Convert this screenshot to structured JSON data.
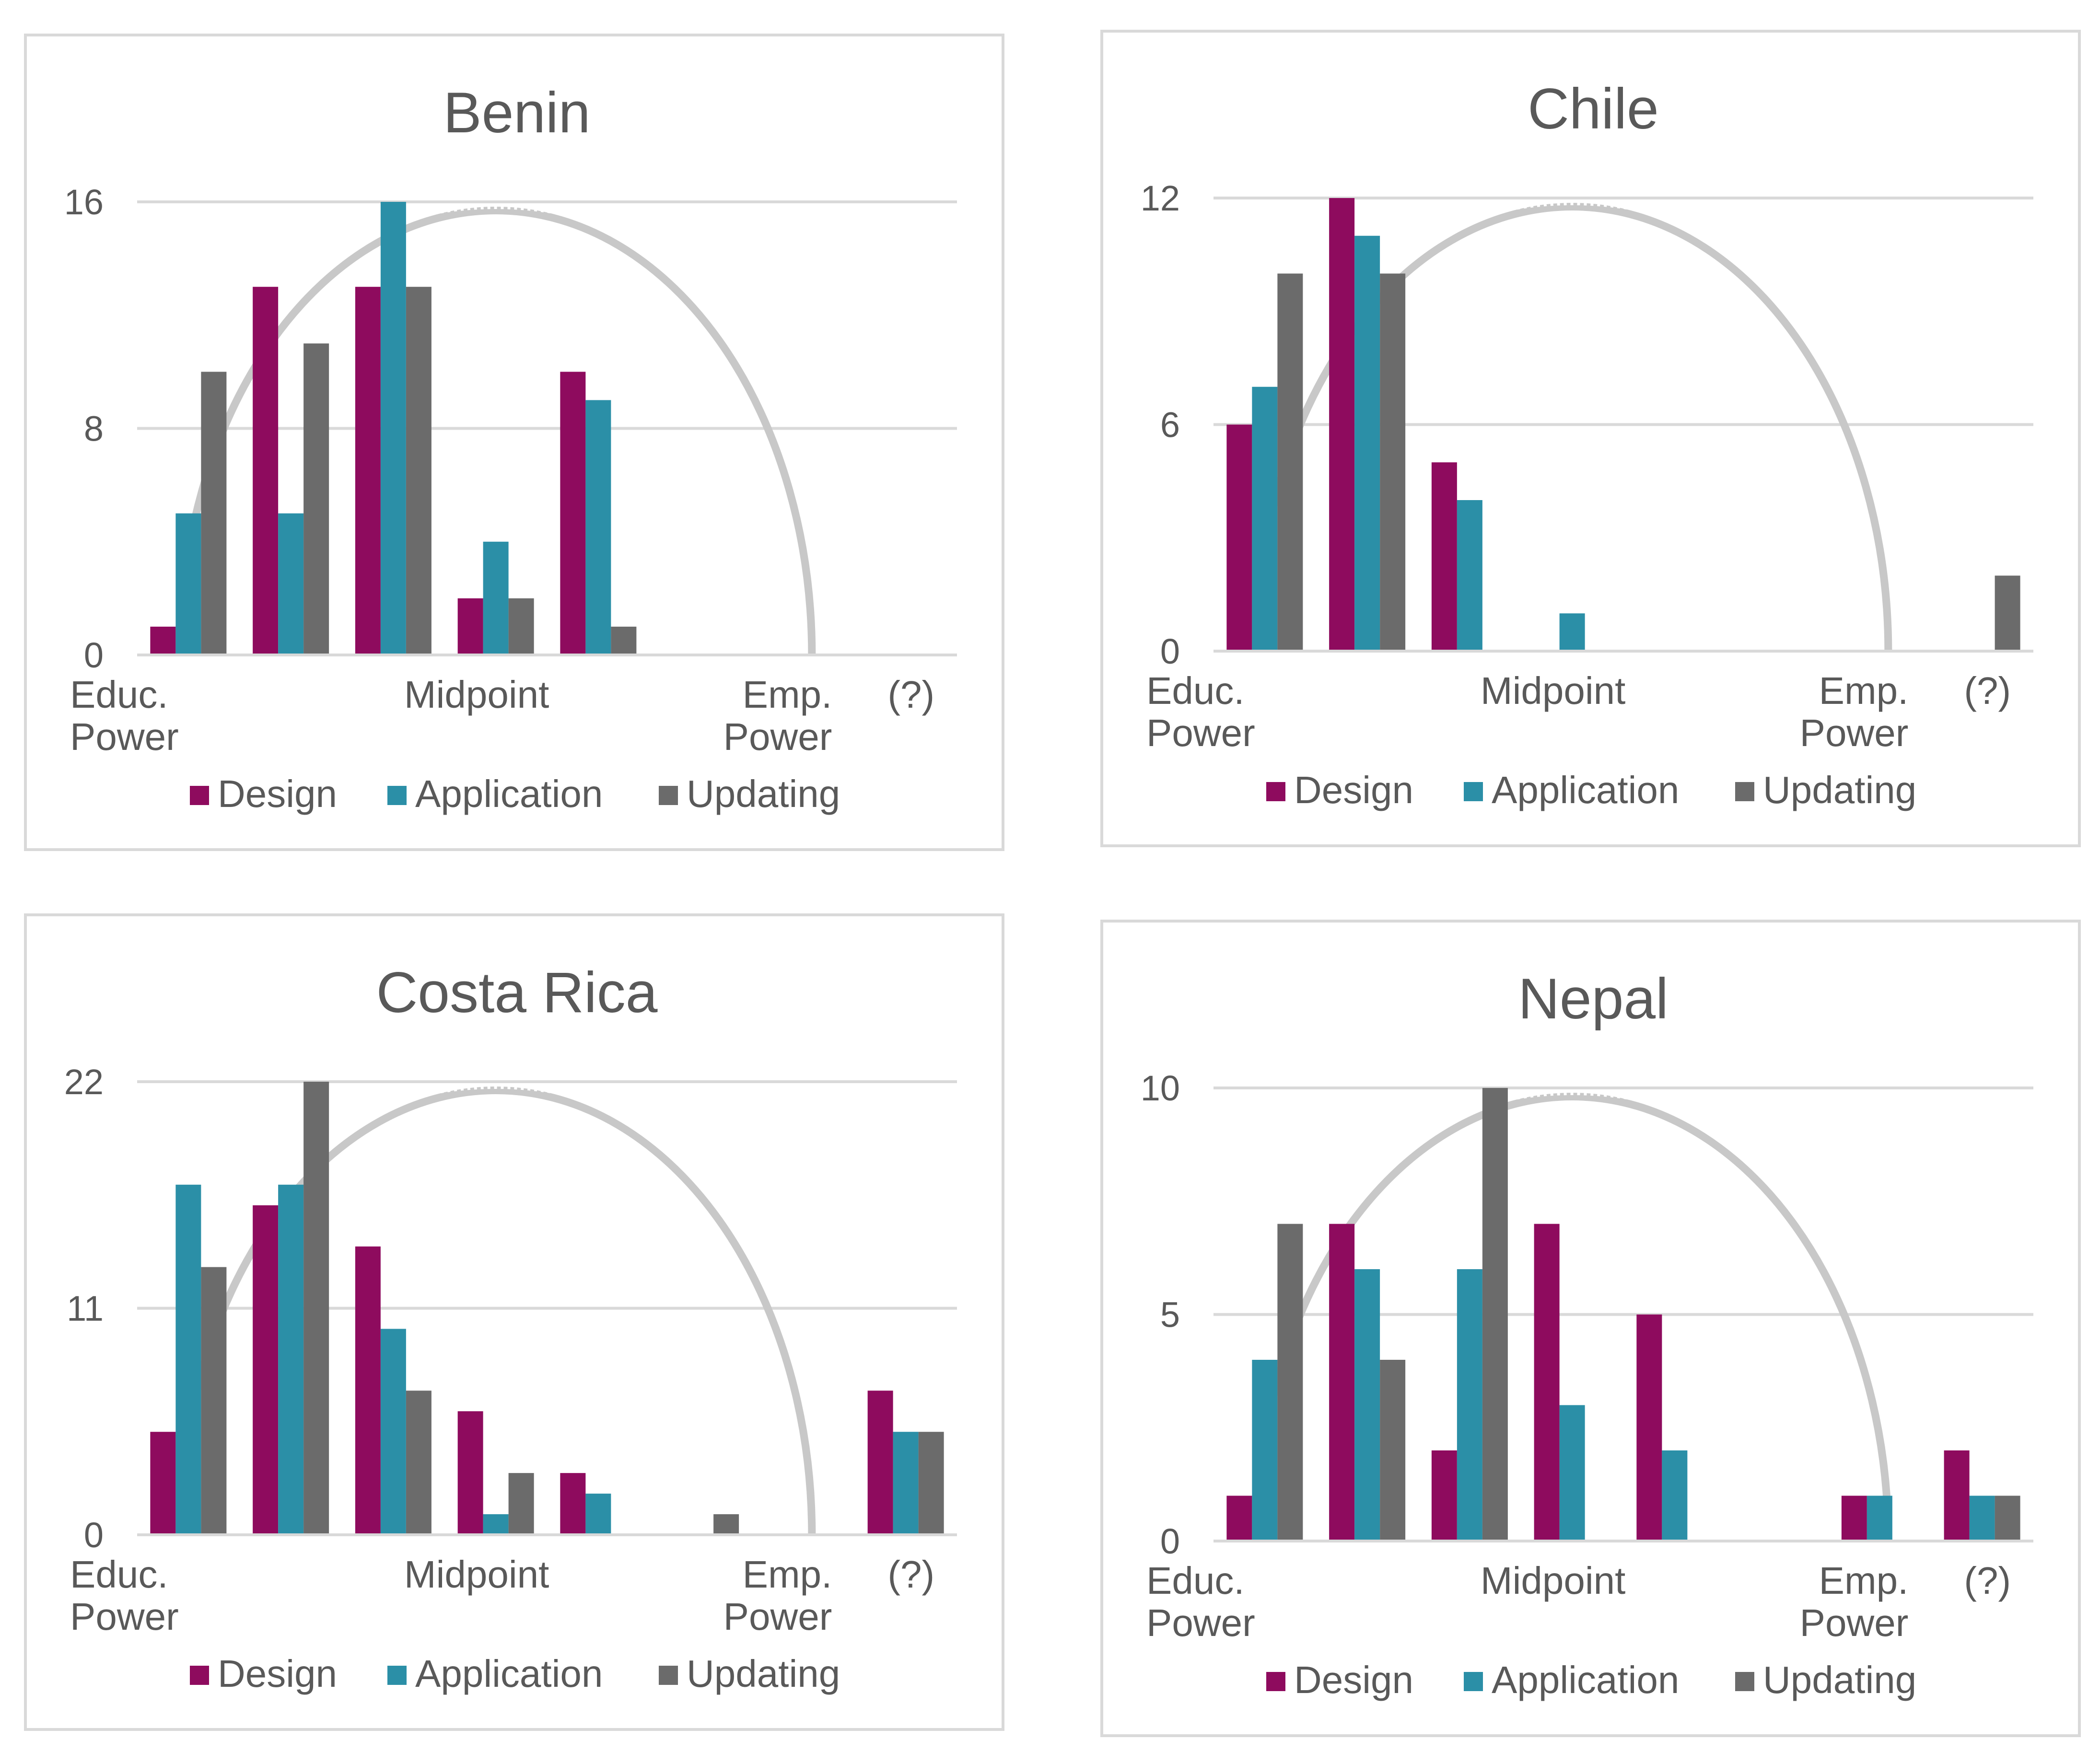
{
  "series_names": [
    "Design",
    "Application",
    "Updating"
  ],
  "colors": {
    "design": "#8e0b5e",
    "application": "#2b8fa7",
    "updating": "#6b6b6b",
    "grid": "#d9d9d9",
    "arc": "#c8c8c8",
    "text": "#595959"
  },
  "chart_data": [
    {
      "type": "bar",
      "title": "Benin",
      "categories": [
        "Educ. Power",
        "",
        "",
        "Midpoint",
        "",
        "",
        "Emp. Power",
        "(?)"
      ],
      "x_labels": [
        {
          "lines": [
            "Educ.",
            "Power"
          ],
          "pos": "cat-1"
        },
        {
          "lines": [
            "Midpoint"
          ],
          "pos": "cat-4"
        },
        {
          "lines": [
            "Emp.",
            "Power"
          ],
          "pos": "cat-7"
        },
        {
          "lines": [
            "(?)"
          ],
          "pos": "cat-8"
        }
      ],
      "ylim": [
        0,
        16
      ],
      "yticks": [
        "0",
        "8",
        "16"
      ],
      "series": [
        {
          "name": "Design",
          "values": [
            1,
            13,
            13,
            2,
            10,
            0,
            0,
            0
          ]
        },
        {
          "name": "Application",
          "values": [
            5,
            5,
            16,
            4,
            9,
            0,
            0,
            0
          ]
        },
        {
          "name": "Updating",
          "values": [
            10,
            11,
            13,
            2,
            1,
            0,
            0,
            0
          ]
        }
      ]
    },
    {
      "type": "bar",
      "title": "Chile",
      "categories": [
        "Educ. Power",
        "",
        "",
        "Midpoint",
        "",
        "",
        "Emp. Power",
        "(?)"
      ],
      "x_labels": [
        {
          "lines": [
            "Educ.",
            "Power"
          ],
          "pos": "cat-1"
        },
        {
          "lines": [
            "Midpoint"
          ],
          "pos": "cat-4"
        },
        {
          "lines": [
            "Emp.",
            "Power"
          ],
          "pos": "cat-7"
        },
        {
          "lines": [
            "(?)"
          ],
          "pos": "cat-8"
        }
      ],
      "ylim": [
        0,
        12
      ],
      "yticks": [
        "0",
        "6",
        "12"
      ],
      "series": [
        {
          "name": "Design",
          "values": [
            6,
            12,
            5,
            0,
            0,
            0,
            0,
            0
          ]
        },
        {
          "name": "Application",
          "values": [
            7,
            11,
            4,
            1,
            0,
            0,
            0,
            0
          ]
        },
        {
          "name": "Updating",
          "values": [
            10,
            10,
            0,
            0,
            0,
            0,
            0,
            2
          ]
        }
      ]
    },
    {
      "type": "bar",
      "title": "Costa Rica",
      "categories": [
        "Educ. Power",
        "",
        "",
        "Midpoint",
        "",
        "",
        "Emp. Power",
        "(?)"
      ],
      "x_labels": [
        {
          "lines": [
            "Educ.",
            "Power"
          ],
          "pos": "cat-1"
        },
        {
          "lines": [
            "Midpoint"
          ],
          "pos": "cat-4"
        },
        {
          "lines": [
            "Emp.",
            "Power"
          ],
          "pos": "cat-7"
        },
        {
          "lines": [
            "(?)"
          ],
          "pos": "cat-8"
        }
      ],
      "ylim": [
        0,
        22
      ],
      "yticks": [
        "0",
        "11",
        "22"
      ],
      "series": [
        {
          "name": "Design",
          "values": [
            5,
            16,
            14,
            6,
            3,
            0,
            0,
            7
          ]
        },
        {
          "name": "Application",
          "values": [
            17,
            17,
            10,
            1,
            2,
            0,
            0,
            5
          ]
        },
        {
          "name": "Updating",
          "values": [
            13,
            22,
            7,
            3,
            0,
            1,
            0,
            5
          ]
        }
      ]
    },
    {
      "type": "bar",
      "title": "Nepal",
      "categories": [
        "Educ. Power",
        "",
        "",
        "Midpoint",
        "",
        "",
        "Emp. Power",
        "(?)"
      ],
      "x_labels": [
        {
          "lines": [
            "Educ.",
            "Power"
          ],
          "pos": "cat-1"
        },
        {
          "lines": [
            "Midpoint"
          ],
          "pos": "cat-4"
        },
        {
          "lines": [
            "Emp.",
            "Power"
          ],
          "pos": "cat-7"
        },
        {
          "lines": [
            "(?)"
          ],
          "pos": "cat-8"
        }
      ],
      "ylim": [
        0,
        10
      ],
      "yticks": [
        "0",
        "5",
        "10"
      ],
      "series": [
        {
          "name": "Design",
          "values": [
            1,
            7,
            2,
            7,
            5,
            0,
            1,
            2
          ]
        },
        {
          "name": "Application",
          "values": [
            4,
            6,
            6,
            3,
            2,
            0,
            1,
            1
          ]
        },
        {
          "name": "Updating",
          "values": [
            7,
            4,
            10,
            0,
            0,
            0,
            0,
            1
          ]
        }
      ]
    }
  ]
}
